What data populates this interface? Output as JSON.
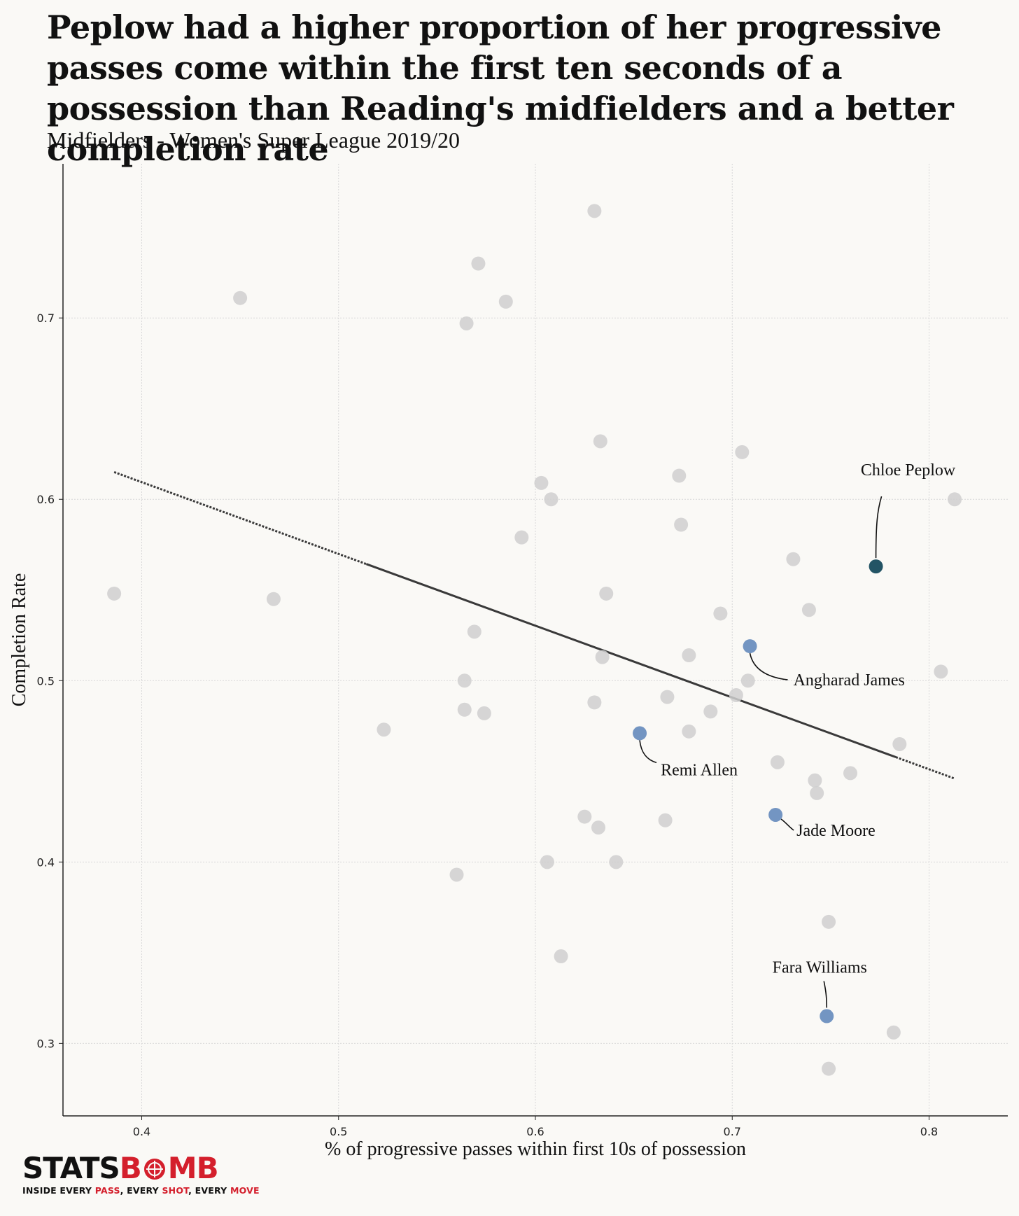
{
  "title": "Peplow had a higher proportion of her progressive passes come within the first ten seconds of a possession than Reading's midfielders and a better completion rate",
  "subtitle": "Midfielders - Women's Super League 2019/20",
  "colors": {
    "background": "#faf9f6",
    "others": "#cfcfcf",
    "reading": "#6b8fbf",
    "highlight": "#174b5d",
    "trend": "#3a3a3a",
    "brand_red": "#d41f2c"
  },
  "logo": {
    "word_part1": "STATS",
    "word_part2_pre": "B",
    "word_part2_post": "MB",
    "tag_1": "INSIDE EVERY ",
    "tag_pass": "PASS",
    "tag_2": ", EVERY ",
    "tag_shot": "SHOT",
    "tag_3": ", EVERY ",
    "tag_move": "MOVE",
    "icon": "bomb-icon"
  },
  "chart_data": {
    "type": "scatter",
    "xlabel": "% of progressive passes within first 10s of possession",
    "ylabel": "Completion Rate",
    "xlim": [
      0.36,
      0.84
    ],
    "ylim": [
      0.26,
      0.785
    ],
    "xticks": [
      "0.4",
      "0.5",
      "0.6",
      "0.7",
      "0.8"
    ],
    "yticks": [
      "0.3",
      "0.4",
      "0.5",
      "0.6",
      "0.7"
    ],
    "grid": true,
    "points": [
      {
        "x": 0.63,
        "y": 0.759
      },
      {
        "x": 0.571,
        "y": 0.73
      },
      {
        "x": 0.45,
        "y": 0.711
      },
      {
        "x": 0.585,
        "y": 0.709
      },
      {
        "x": 0.565,
        "y": 0.697
      },
      {
        "x": 0.633,
        "y": 0.632
      },
      {
        "x": 0.705,
        "y": 0.626
      },
      {
        "x": 0.673,
        "y": 0.613
      },
      {
        "x": 0.603,
        "y": 0.609
      },
      {
        "x": 0.608,
        "y": 0.6
      },
      {
        "x": 0.813,
        "y": 0.6
      },
      {
        "x": 0.674,
        "y": 0.586
      },
      {
        "x": 0.593,
        "y": 0.579
      },
      {
        "x": 0.731,
        "y": 0.567
      },
      {
        "x": 0.386,
        "y": 0.548
      },
      {
        "x": 0.636,
        "y": 0.548
      },
      {
        "x": 0.467,
        "y": 0.545
      },
      {
        "x": 0.739,
        "y": 0.539
      },
      {
        "x": 0.694,
        "y": 0.537
      },
      {
        "x": 0.569,
        "y": 0.527
      },
      {
        "x": 0.634,
        "y": 0.513
      },
      {
        "x": 0.678,
        "y": 0.514
      },
      {
        "x": 0.806,
        "y": 0.505
      },
      {
        "x": 0.564,
        "y": 0.5
      },
      {
        "x": 0.708,
        "y": 0.5
      },
      {
        "x": 0.702,
        "y": 0.492
      },
      {
        "x": 0.667,
        "y": 0.491
      },
      {
        "x": 0.63,
        "y": 0.488
      },
      {
        "x": 0.564,
        "y": 0.484
      },
      {
        "x": 0.689,
        "y": 0.483
      },
      {
        "x": 0.574,
        "y": 0.482
      },
      {
        "x": 0.523,
        "y": 0.473
      },
      {
        "x": 0.678,
        "y": 0.472
      },
      {
        "x": 0.785,
        "y": 0.465
      },
      {
        "x": 0.723,
        "y": 0.455
      },
      {
        "x": 0.76,
        "y": 0.449
      },
      {
        "x": 0.742,
        "y": 0.445
      },
      {
        "x": 0.743,
        "y": 0.438
      },
      {
        "x": 0.625,
        "y": 0.425
      },
      {
        "x": 0.666,
        "y": 0.423
      },
      {
        "x": 0.632,
        "y": 0.419
      },
      {
        "x": 0.606,
        "y": 0.4
      },
      {
        "x": 0.641,
        "y": 0.4
      },
      {
        "x": 0.56,
        "y": 0.393
      },
      {
        "x": 0.749,
        "y": 0.367
      },
      {
        "x": 0.613,
        "y": 0.348
      },
      {
        "x": 0.782,
        "y": 0.306
      },
      {
        "x": 0.749,
        "y": 0.286
      }
    ],
    "highlighted": [
      {
        "name": "Chloe Peplow",
        "x": 0.773,
        "y": 0.563,
        "group": "highlight"
      },
      {
        "name": "Angharad James",
        "x": 0.709,
        "y": 0.519,
        "group": "reading"
      },
      {
        "name": "Remi Allen",
        "x": 0.653,
        "y": 0.471,
        "group": "reading"
      },
      {
        "name": "Jade Moore",
        "x": 0.722,
        "y": 0.426,
        "group": "reading"
      },
      {
        "name": "Fara Williams",
        "x": 0.748,
        "y": 0.315,
        "group": "reading"
      }
    ],
    "trendline": {
      "x": [
        0.386,
        0.813
      ],
      "y": [
        0.615,
        0.446
      ]
    }
  }
}
